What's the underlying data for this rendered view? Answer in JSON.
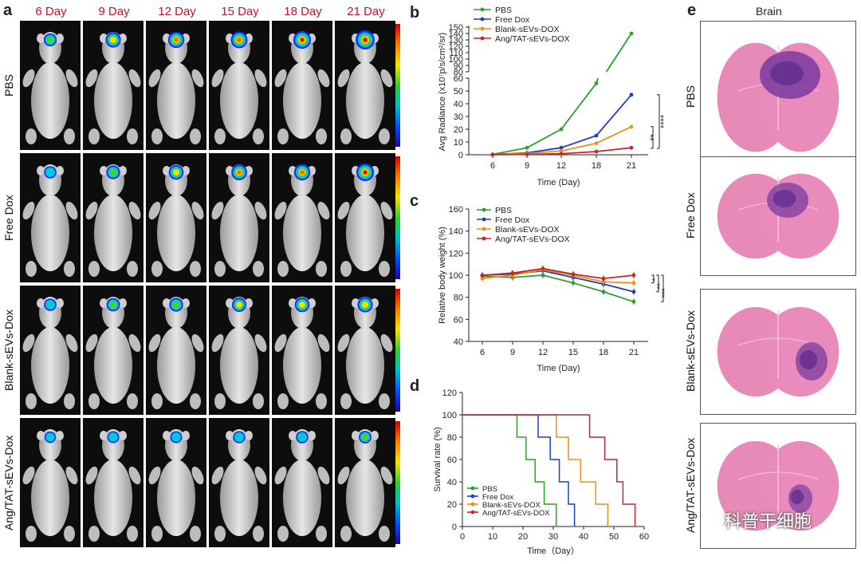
{
  "panel_a": {
    "letter": "a",
    "days": [
      "6 Day",
      "9 Day",
      "12 Day",
      "15 Day",
      "18 Day",
      "21 Day"
    ],
    "groups": [
      "PBS",
      "Free Dox",
      "Blank-sEVs-Dox",
      "Ang/TAT-sEVs-Dox"
    ]
  },
  "panel_e": {
    "letter": "e",
    "title": "Brain",
    "groups": [
      "PBS",
      "Free Dox",
      "Blank-sEVs-Dox",
      "Ang/TAT-sEVs-Dox"
    ]
  },
  "watermark": "科普干细胞",
  "colors": {
    "pbs": "#2ca02c",
    "free_dox": "#1f3fbf",
    "blank": "#f0901a",
    "ang": "#c0282a",
    "label_red": "#c8102e"
  },
  "chart_data": [
    {
      "id": "b",
      "letter": "b",
      "type": "line",
      "xlabel": "Time (Day)",
      "ylabel": "Avg Radiance (x10⁷p/s/cm²/sr)",
      "x": [
        6,
        9,
        12,
        18,
        21
      ],
      "y_ticks_lower": [
        "0",
        "10",
        "20",
        "30",
        "40",
        "50",
        "60"
      ],
      "y_ticks_upper": [
        "80",
        "90",
        "100",
        "110",
        "120",
        "130",
        "140",
        "150"
      ],
      "axis_break": [
        60,
        80
      ],
      "significance": [
        "**",
        "****"
      ],
      "series": [
        {
          "name": "PBS",
          "values": [
            0.3,
            5.5,
            20,
            56,
            140
          ]
        },
        {
          "name": "Free Dox",
          "values": [
            0.2,
            1.5,
            5.5,
            15,
            47
          ]
        },
        {
          "name": "Blank-sEVs-DOX",
          "values": [
            0.2,
            1.0,
            3.0,
            9,
            22
          ]
        },
        {
          "name": "Ang/TAT-sEVs-DOX",
          "values": [
            0.1,
            0.3,
            0.8,
            2.5,
            5.5
          ]
        }
      ]
    },
    {
      "id": "c",
      "letter": "c",
      "type": "line",
      "xlabel": "Time (Day)",
      "ylabel": "Relative body weight (%)",
      "x": [
        6,
        9,
        12,
        15,
        18,
        21
      ],
      "ylim": [
        40,
        160
      ],
      "y_ticks": [
        "40",
        "60",
        "80",
        "100",
        "120",
        "140",
        "160"
      ],
      "significance": [
        "*",
        "**",
        "***"
      ],
      "series": [
        {
          "name": "PBS",
          "values": [
            99,
            98,
            100,
            93,
            85,
            76
          ]
        },
        {
          "name": "Free Dox",
          "values": [
            100,
            101,
            104,
            98,
            92,
            85
          ]
        },
        {
          "name": "Blank-sEVs-DOX",
          "values": [
            97,
            100,
            105,
            100,
            94,
            93
          ]
        },
        {
          "name": "Ang/TAT-sEVs-DOX",
          "values": [
            100,
            102,
            106,
            101,
            97,
            100
          ]
        }
      ]
    },
    {
      "id": "d",
      "letter": "d",
      "type": "line",
      "xlabel": "Time（Day）",
      "ylabel": "Survival rate (%)",
      "xlim": [
        0,
        60
      ],
      "ylim": [
        0,
        120
      ],
      "x_ticks": [
        "0",
        "10",
        "20",
        "30",
        "40",
        "50",
        "60"
      ],
      "y_ticks": [
        "0",
        "20",
        "40",
        "60",
        "80",
        "100",
        "120"
      ],
      "series": [
        {
          "name": "PBS",
          "steps": [
            [
              0,
              100
            ],
            [
              18,
              100
            ],
            [
              18,
              80
            ],
            [
              21,
              80
            ],
            [
              21,
              60
            ],
            [
              24,
              60
            ],
            [
              24,
              40
            ],
            [
              27,
              40
            ],
            [
              27,
              20
            ],
            [
              31,
              20
            ],
            [
              31,
              0
            ]
          ]
        },
        {
          "name": "Free Dox",
          "steps": [
            [
              0,
              100
            ],
            [
              25,
              100
            ],
            [
              25,
              80
            ],
            [
              29,
              80
            ],
            [
              29,
              60
            ],
            [
              32,
              60
            ],
            [
              32,
              40
            ],
            [
              35,
              40
            ],
            [
              35,
              20
            ],
            [
              37,
              20
            ],
            [
              37,
              0
            ]
          ]
        },
        {
          "name": "Blank-sEVs-DOX",
          "steps": [
            [
              0,
              100
            ],
            [
              31,
              100
            ],
            [
              31,
              80
            ],
            [
              35,
              80
            ],
            [
              35,
              60
            ],
            [
              39,
              60
            ],
            [
              39,
              40
            ],
            [
              44,
              40
            ],
            [
              44,
              20
            ],
            [
              48,
              20
            ],
            [
              48,
              0
            ]
          ]
        },
        {
          "name": "Ang/TAT-sEVs-DOX",
          "steps": [
            [
              0,
              100
            ],
            [
              42,
              100
            ],
            [
              42,
              80
            ],
            [
              47,
              80
            ],
            [
              47,
              60
            ],
            [
              51,
              60
            ],
            [
              51,
              40
            ],
            [
              53,
              40
            ],
            [
              53,
              20
            ],
            [
              57,
              20
            ],
            [
              57,
              0
            ]
          ]
        }
      ]
    }
  ]
}
